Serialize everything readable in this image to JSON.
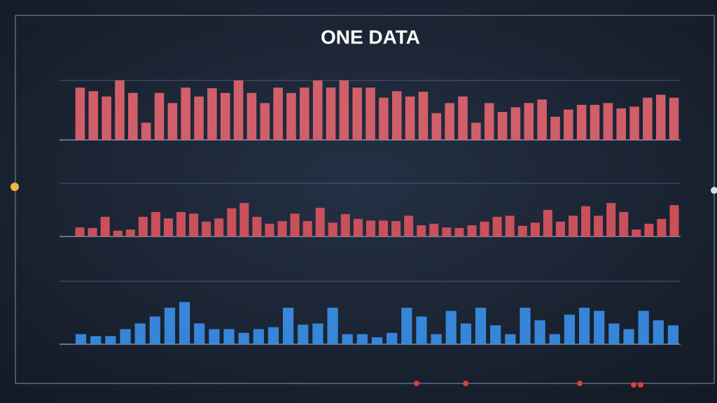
{
  "header": {
    "title": "ONE DATA"
  },
  "chart_data": [
    {
      "type": "bar",
      "color": "#e0646e",
      "ylim": [
        0,
        100
      ],
      "values": [
        88,
        82,
        73,
        100,
        79,
        29,
        79,
        62,
        88,
        73,
        87,
        79,
        100,
        79,
        62,
        88,
        79,
        88,
        100,
        88,
        100,
        88,
        88,
        71,
        82,
        73,
        81,
        45,
        62,
        73,
        29,
        62,
        47,
        55,
        62,
        68,
        39,
        51,
        59,
        59,
        62,
        53,
        56,
        71,
        76,
        71
      ]
    },
    {
      "type": "bar",
      "color": "#d9545e",
      "ylim": [
        0,
        100
      ],
      "values": [
        17,
        16,
        37,
        11,
        13,
        37,
        46,
        34,
        46,
        43,
        28,
        34,
        53,
        63,
        37,
        24,
        29,
        43,
        29,
        54,
        26,
        42,
        33,
        30,
        30,
        29,
        39,
        21,
        24,
        17,
        16,
        21,
        28,
        37,
        39,
        20,
        26,
        50,
        28,
        39,
        57,
        39,
        63,
        46,
        13,
        24,
        33,
        59
      ]
    },
    {
      "type": "bar",
      "color": "#3a8ee6",
      "ylim": [
        0,
        100
      ],
      "values": [
        16,
        13,
        13,
        24,
        33,
        44,
        58,
        67,
        33,
        24,
        24,
        18,
        24,
        27,
        58,
        31,
        33,
        58,
        16,
        16,
        11,
        18,
        58,
        44,
        16,
        53,
        33,
        58,
        30,
        16,
        58,
        38,
        16,
        47,
        58,
        53,
        33,
        24,
        53,
        38,
        30
      ]
    }
  ]
}
